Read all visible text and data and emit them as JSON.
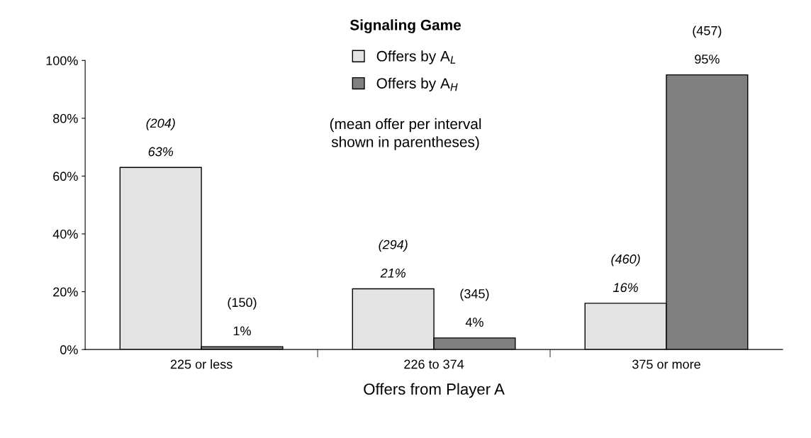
{
  "chart_data": {
    "type": "bar",
    "title": "Signaling Game",
    "xlabel": "Offers from Player A",
    "categories": [
      "225 or less",
      "226 to 374",
      "375 or more"
    ],
    "series": [
      {
        "name": "Offers by A$_{L}$",
        "color": "#e3e3e3",
        "values": [
          63,
          21,
          16
        ],
        "value_labels": [
          "(204)\n\n63%",
          "(294)\n\n21%",
          "(460)\n\n16%"
        ]
      },
      {
        "name": "Offers by A$_{H}$",
        "color": "#808080",
        "values": [
          1,
          4,
          95
        ],
        "value_labels": [
          "(150)\n\n1%",
          "(345)\n\n4%",
          "(457)\n\n95%"
        ]
      }
    ],
    "annotations": [
      "(mean offer per interval\nshown in parentheses)"
    ],
    "ylim": [
      0,
      100
    ],
    "yticks": [
      {
        "value": 0,
        "label": "0%"
      },
      {
        "value": 20,
        "label": "20%"
      },
      {
        "value": 40,
        "label": "40%"
      },
      {
        "value": 60,
        "label": "60%"
      },
      {
        "value": 80,
        "label": "80%"
      },
      {
        "value": 100,
        "label": "100%"
      }
    ],
    "grid": false,
    "legend": "top"
  }
}
